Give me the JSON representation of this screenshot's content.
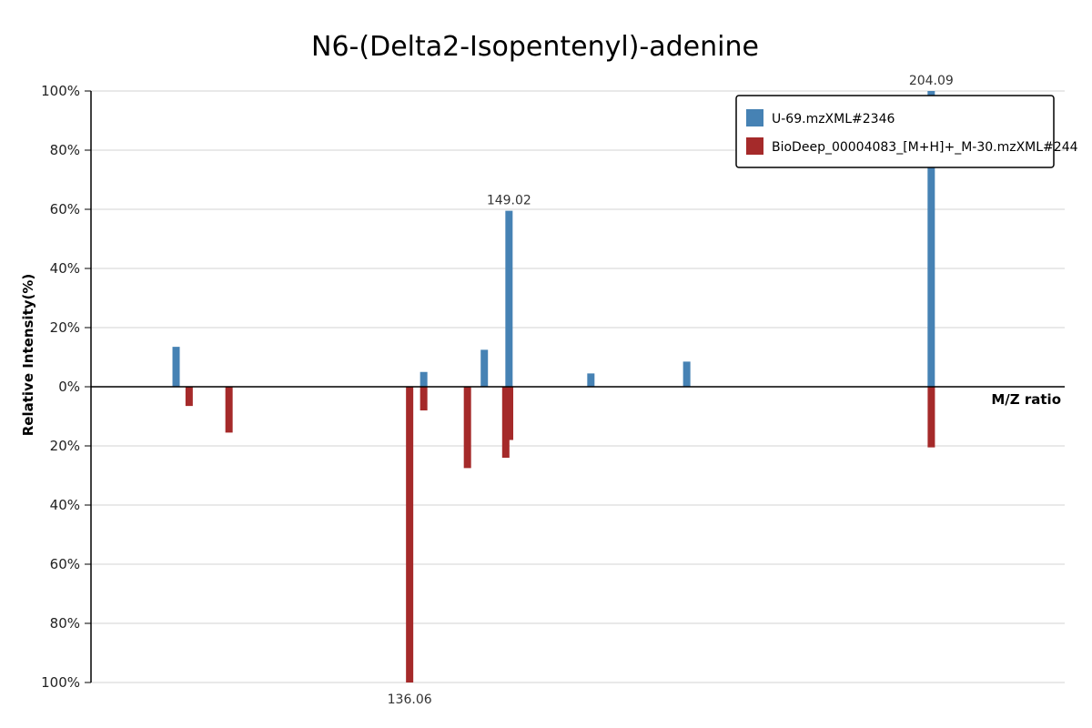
{
  "chart_data": {
    "type": "bar",
    "title": "N6-(Delta2-Isopentenyl)-adenine",
    "xlabel": "M/Z ratio",
    "ylabel": "Relative Intensity(%)",
    "ylim": [
      -100,
      100
    ],
    "yticks": [
      "100%",
      "80%",
      "60%",
      "40%",
      "20%",
      "0%",
      "20%",
      "40%",
      "60%",
      "80%",
      "100%"
    ],
    "xlim": [
      94.5,
      221.5
    ],
    "grid": true,
    "legend_position": "top-right",
    "series": [
      {
        "name": "U-69.mzXML#2346",
        "color": "#4682b4",
        "direction": "up",
        "points": [
          {
            "mz": 105.6,
            "value": 13.5
          },
          {
            "mz": 137.9,
            "value": 5.0
          },
          {
            "mz": 145.8,
            "value": 12.5
          },
          {
            "mz": 149.02,
            "value": 59.5,
            "label": "149.02"
          },
          {
            "mz": 159.7,
            "value": 4.5
          },
          {
            "mz": 172.2,
            "value": 8.5
          },
          {
            "mz": 204.09,
            "value": 100,
            "label": "204.09"
          }
        ]
      },
      {
        "name": "BioDeep_00004083_[M+H]+_M-30.mzXML#244",
        "color": "#a52a2a",
        "direction": "down",
        "points": [
          {
            "mz": 107.3,
            "value": 6.5
          },
          {
            "mz": 112.5,
            "value": 15.5
          },
          {
            "mz": 137.9,
            "value": 8.0
          },
          {
            "mz": 143.6,
            "value": 27.5
          },
          {
            "mz": 136.06,
            "value": 100,
            "label": "136.06"
          },
          {
            "mz": 148.6,
            "value": 24.0
          },
          {
            "mz": 149.1,
            "value": 18.0
          },
          {
            "mz": 204.1,
            "value": 20.5
          }
        ]
      }
    ]
  }
}
